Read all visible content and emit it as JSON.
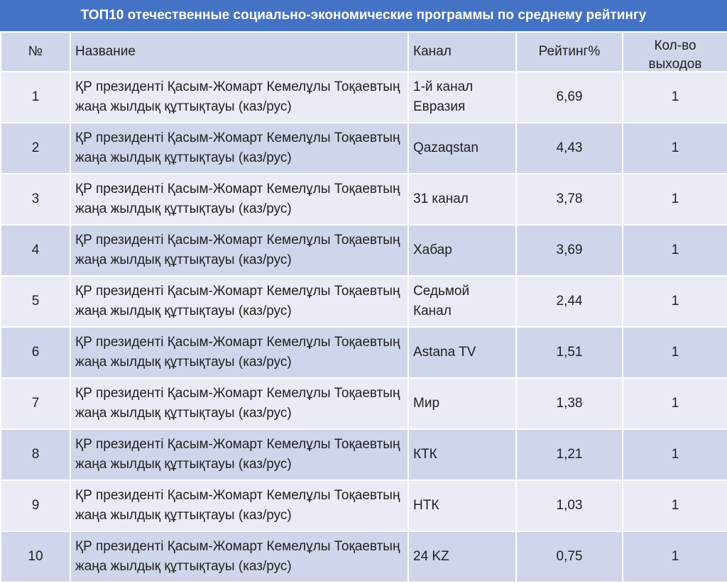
{
  "title": "ТОП10 отечественные социально-экономические программы по среднему рейтингу",
  "columns": {
    "num": "№",
    "name": "Название",
    "channel": "Канал",
    "rating": "Рейтинг%",
    "count": "Кол-во выходов"
  },
  "rows": [
    {
      "num": "1",
      "name": "ҚР президенті Қасым-Жомарт Кемелұлы Тоқаевтың жаңа жылдық құттықтауы (каз/рус)",
      "channel": "1-й канал Евразия",
      "rating": "6,69",
      "count": "1"
    },
    {
      "num": "2",
      "name": "ҚР президенті Қасым-Жомарт Кемелұлы Тоқаевтың жаңа жылдық құттықтауы (каз/рус)",
      "channel": "Qazaqstan",
      "rating": "4,43",
      "count": "1"
    },
    {
      "num": "3",
      "name": "ҚР президенті Қасым-Жомарт Кемелұлы Тоқаевтың жаңа жылдық құттықтауы (каз/рус)",
      "channel": "31 канал",
      "rating": "3,78",
      "count": "1"
    },
    {
      "num": "4",
      "name": "ҚР президенті Қасым-Жомарт Кемелұлы Тоқаевтың жаңа жылдық құттықтауы (каз/рус)",
      "channel": "Хабар",
      "rating": "3,69",
      "count": "1"
    },
    {
      "num": "5",
      "name": "ҚР президенті Қасым-Жомарт Кемелұлы Тоқаевтың жаңа жылдық құттықтауы (каз/рус)",
      "channel": "Седьмой Канал",
      "rating": "2,44",
      "count": "1"
    },
    {
      "num": "6",
      "name": "ҚР президенті Қасым-Жомарт Кемелұлы Тоқаевтың жаңа жылдық құттықтауы (каз/рус)",
      "channel": "Astana TV",
      "rating": "1,51",
      "count": "1"
    },
    {
      "num": "7",
      "name": "ҚР президенті Қасым-Жомарт Кемелұлы Тоқаевтың жаңа жылдық құттықтауы (каз/рус)",
      "channel": "Мир",
      "rating": "1,38",
      "count": "1"
    },
    {
      "num": "8",
      "name": "ҚР президенті Қасым-Жомарт Кемелұлы Тоқаевтың жаңа жылдық құттықтауы (каз/рус)",
      "channel": "КТК",
      "rating": "1,21",
      "count": "1"
    },
    {
      "num": "9",
      "name": "ҚР президенті Қасым-Жомарт Кемелұлы Тоқаевтың жаңа жылдық құттықтауы (каз/рус)",
      "channel": "НТК",
      "rating": "1,03",
      "count": "1"
    },
    {
      "num": "10",
      "name": "ҚР президенті Қасым-Жомарт Кемелұлы Тоқаевтың жаңа жылдық құттықтауы (каз/рус)",
      "channel": "24 KZ",
      "rating": "0,75",
      "count": "1"
    }
  ],
  "colors": {
    "header_bar": "#4472c4",
    "header_row": "#cfd5ea",
    "row_light": "#e9ebf5",
    "row_dark": "#cfd5ea"
  }
}
